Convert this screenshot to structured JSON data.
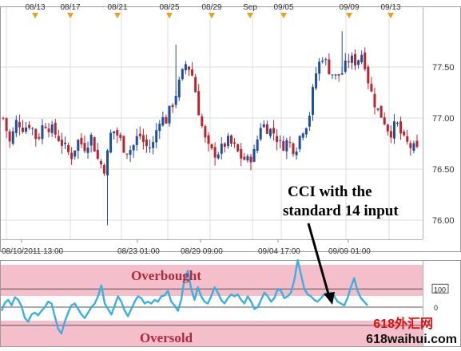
{
  "top_markers": [
    "08/13",
    "08/17",
    "08/21",
    "08/25",
    "08/29",
    "Sep",
    "09/05",
    "09/09",
    "09/13"
  ],
  "price_axis_labels": [
    "77.50",
    "77.00",
    "76.50",
    "76.00"
  ],
  "time_axis_labels": [
    "08/10/2011 13:00",
    "08/23 01:00",
    "08/29 09:00",
    "09/04 17:00",
    "09/09 01:00"
  ],
  "annotation": {
    "line1": "CCI with the",
    "line2": "standard 14 input"
  },
  "zones": {
    "overbought": "Overbought",
    "oversold": "Oversold"
  },
  "cci_axis_labels": [
    "100",
    "0"
  ],
  "watermark": {
    "line1": "618外汇网",
    "line2": "618waihui.com"
  },
  "colors": {
    "bull_candle": "#1f4f9a",
    "bear_candle": "#b8252f",
    "cci_line": "#3ab0e0",
    "zone_fill": "#f4bfcb",
    "zone_text": "#b0283e",
    "marker": "#e8a020",
    "watermark_red": "#e01010",
    "watermark_black": "#111111"
  },
  "chart_data": [
    {
      "type": "candlestick",
      "title": "",
      "ylim": [
        75.9,
        77.85
      ],
      "yticks": [
        76.0,
        76.5,
        77.0,
        77.5
      ],
      "x_tick_labels": [
        "08/10/2011 13:00",
        "08/23 01:00",
        "08/29 09:00",
        "09/04 17:00",
        "09/09 01:00"
      ],
      "close_path": [
        77.0,
        76.75,
        76.98,
        76.9,
        76.95,
        76.78,
        76.96,
        76.9,
        76.82,
        76.72,
        76.62,
        76.78,
        76.72,
        76.82,
        76.58,
        76.5,
        76.9,
        76.82,
        76.68,
        76.7,
        76.85,
        76.72,
        76.72,
        77.0,
        76.98,
        77.15,
        77.35,
        77.55,
        77.4,
        77.0,
        76.72,
        76.65,
        76.68,
        76.78,
        76.72,
        76.62,
        76.58,
        76.66,
        76.95,
        76.9,
        76.85,
        76.72,
        76.78,
        76.68,
        76.88,
        76.98,
        77.42,
        77.62,
        77.48,
        77.4,
        77.45,
        77.58,
        77.55,
        77.65,
        77.3,
        77.1,
        77.0,
        76.85,
        76.95,
        76.78,
        76.72,
        76.68
      ]
    },
    {
      "type": "line",
      "title": "",
      "series": [
        {
          "name": "",
          "values": [
            -20,
            25,
            40,
            10,
            55,
            40,
            5,
            -60,
            -80,
            -40,
            -30,
            -45,
            -20,
            0,
            30,
            20,
            -50,
            -120,
            -145,
            -80,
            -30,
            10,
            20,
            -10,
            -40,
            -60,
            -30,
            0,
            20,
            60,
            120,
            20,
            -10,
            -40,
            10,
            60,
            30,
            -20,
            -50,
            -10,
            30,
            60,
            50,
            20,
            30,
            20,
            40,
            30,
            60,
            65,
            90,
            30,
            10,
            -20,
            40,
            160,
            200,
            100,
            40,
            110,
            60,
            30,
            20,
            60,
            110,
            80,
            40,
            20,
            50,
            70,
            60,
            70,
            40,
            20,
            60,
            30,
            -10,
            0,
            40,
            80,
            60,
            30,
            50,
            100,
            90,
            50,
            60,
            80,
            150,
            260,
            180,
            100,
            70,
            60,
            40,
            30,
            50,
            70,
            60,
            80,
            60,
            30,
            20,
            10,
            50,
            110,
            160,
            90,
            50,
            30,
            10
          ]
        }
      ],
      "levels": [
        100,
        0,
        -100
      ],
      "ylim": [
        -215,
        255
      ],
      "y_tick_labels": [
        "100",
        "0"
      ]
    }
  ]
}
